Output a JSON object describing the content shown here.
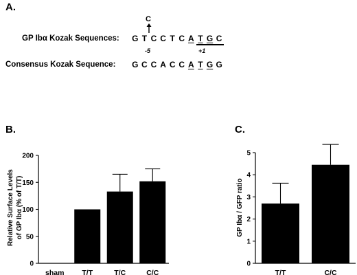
{
  "panel_a": {
    "label": "A.",
    "variant_base": "C",
    "gp_label": "GP Ibα Kozak Sequences:",
    "gp_sequence": [
      "G",
      "T",
      "C",
      "C",
      "T",
      "C",
      "A",
      "T",
      "G",
      "C"
    ],
    "pos_minus5": "-5",
    "pos_plus1": "+1",
    "consensus_label": "Consensus Kozak Sequence:",
    "consensus_sequence": [
      "G",
      "C",
      "C",
      "A",
      "C",
      "C",
      "A",
      "T",
      "G",
      "G"
    ]
  },
  "chart_data": [
    {
      "type": "bar",
      "panel": "B.",
      "categories": [
        "sham",
        "T/T",
        "T/C",
        "C/C"
      ],
      "values": [
        0,
        100,
        133,
        152
      ],
      "errors": [
        0,
        0,
        32,
        23
      ],
      "ylabel_line1": "Relative Surface Levels",
      "ylabel_line2": "of GP Ibα (% of T/T)",
      "ylim": [
        0,
        200
      ],
      "yticks": [
        "0",
        "50",
        "100",
        "150",
        "200"
      ],
      "color": "#000000"
    },
    {
      "type": "bar",
      "panel": "C.",
      "categories": [
        "T/T",
        "C/C"
      ],
      "values": [
        2.7,
        4.45
      ],
      "errors": [
        0.92,
        0.92
      ],
      "ylabel": "GP Ibα / GFP ratio",
      "ylim": [
        0,
        5
      ],
      "yticks": [
        "0",
        "1",
        "2",
        "3",
        "4",
        "5"
      ],
      "color": "#000000"
    }
  ]
}
